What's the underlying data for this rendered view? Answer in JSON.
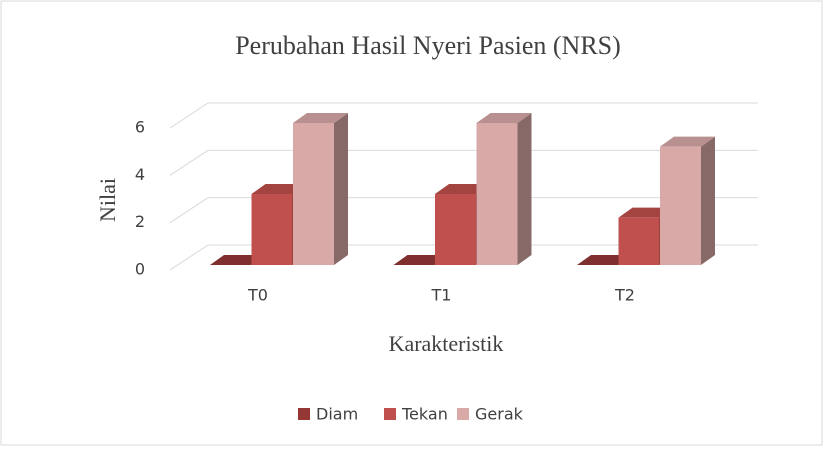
{
  "chart_data": {
    "type": "bar3d",
    "title": "Perubahan Hasil Nyeri Pasien (NRS)",
    "x_label": "Karakteristik",
    "y_label": "Nilai",
    "categories": [
      "T0",
      "T1",
      "T2"
    ],
    "series": [
      {
        "name": "Diam",
        "color": "#953735",
        "values": [
          0,
          0,
          0
        ]
      },
      {
        "name": "Tekan",
        "color": "#c0504d",
        "values": [
          3,
          3,
          2
        ]
      },
      {
        "name": "Gerak",
        "color": "#d9a9a8",
        "values": [
          6,
          6,
          5
        ]
      }
    ],
    "ylim": [
      0,
      6
    ],
    "yticks": [
      0,
      2,
      4,
      6
    ],
    "grid": true,
    "legend": "bottom"
  }
}
